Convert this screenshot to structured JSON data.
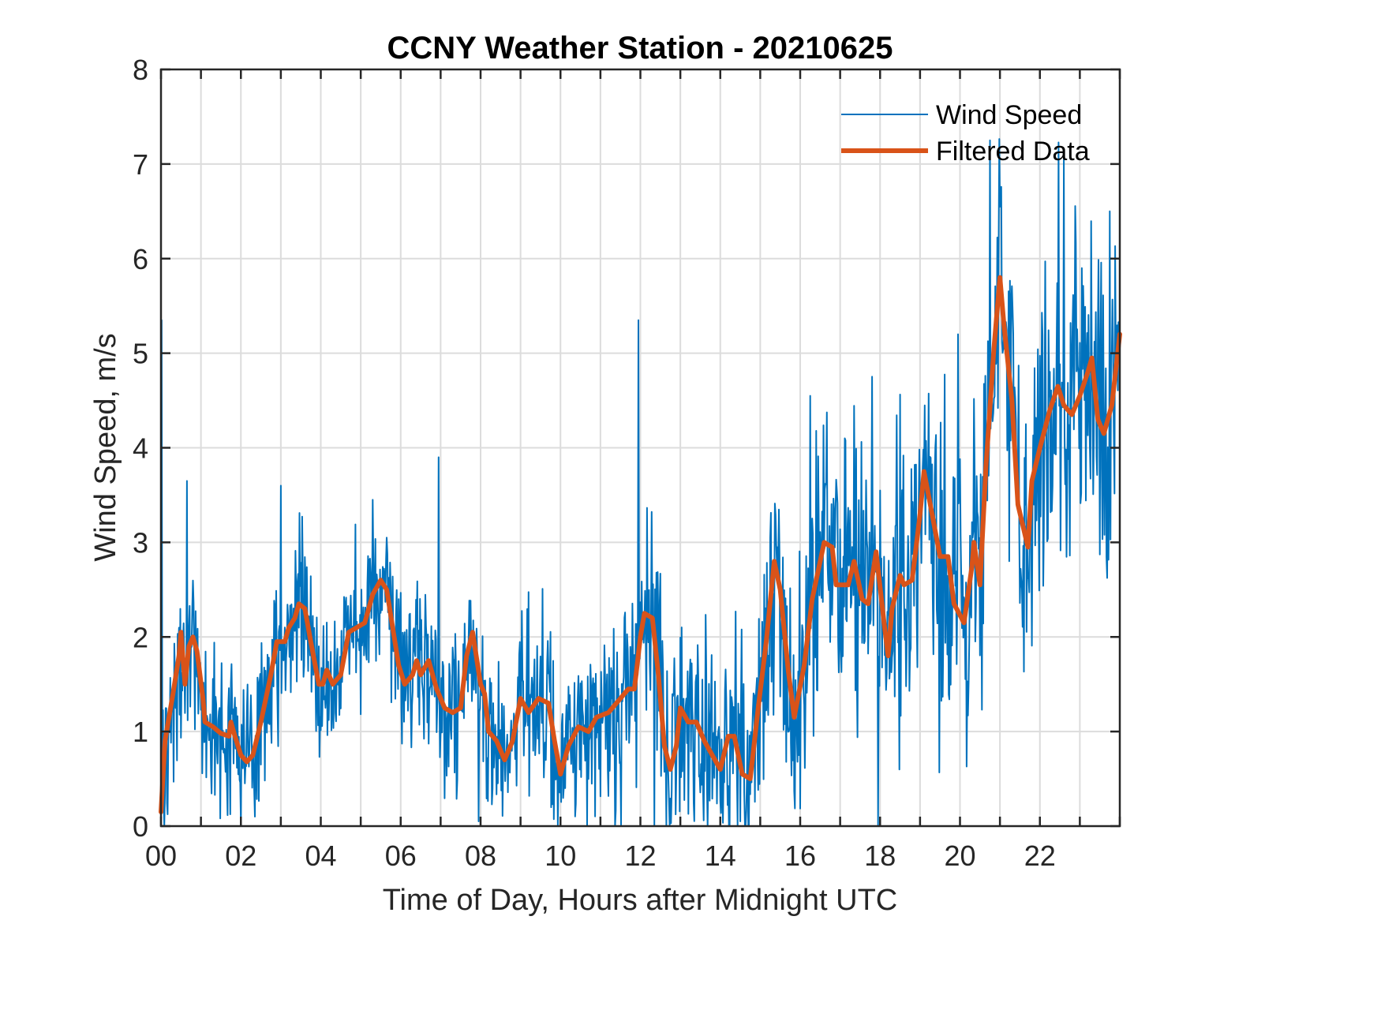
{
  "chart_data": {
    "type": "line",
    "title": "CCNY Weather Station - 20210625",
    "xlabel": "Time of Day, Hours after Midnight UTC",
    "ylabel": "Wind Speed, m/s",
    "xlim": [
      0,
      24
    ],
    "ylim": [
      0,
      8
    ],
    "grid": true,
    "x_grid_step_hours": 1,
    "xticks": [
      0,
      2,
      4,
      6,
      8,
      10,
      12,
      14,
      16,
      18,
      20,
      22
    ],
    "xtick_labels": [
      "00",
      "02",
      "04",
      "06",
      "08",
      "10",
      "12",
      "14",
      "16",
      "18",
      "20",
      "22"
    ],
    "yticks": [
      0,
      1,
      2,
      3,
      4,
      5,
      6,
      7,
      8
    ],
    "ytick_labels": [
      "0",
      "1",
      "2",
      "3",
      "4",
      "5",
      "6",
      "7",
      "8"
    ],
    "legend": {
      "placement": "top-right",
      "entries": [
        "Wind Speed",
        "Filtered Data"
      ]
    },
    "series": [
      {
        "name": "Wind Speed",
        "color": "#0072BD",
        "style": "thin-noisy",
        "noise_amplitude_by_hour": [
          [
            0,
            1.0
          ],
          [
            2,
            0.9
          ],
          [
            8,
            0.95
          ],
          [
            15,
            1.4
          ],
          [
            20,
            1.8
          ],
          [
            24,
            1.9
          ]
        ],
        "notable_peaks": [
          {
            "x": 0.02,
            "y": 5.35
          },
          {
            "x": 0.65,
            "y": 3.65
          },
          {
            "x": 3.0,
            "y": 3.6
          },
          {
            "x": 5.3,
            "y": 3.45
          },
          {
            "x": 6.95,
            "y": 3.9
          },
          {
            "x": 11.95,
            "y": 5.35
          },
          {
            "x": 16.25,
            "y": 4.55
          },
          {
            "x": 17.95,
            "y": 5.3
          },
          {
            "x": 19.95,
            "y": 5.2
          },
          {
            "x": 20.75,
            "y": 7.25
          },
          {
            "x": 22.6,
            "y": 7.05
          },
          {
            "x": 23.75,
            "y": 6.5
          }
        ],
        "notable_troughs": [
          {
            "x": 2.35,
            "y": 0.1
          },
          {
            "x": 7.95,
            "y": 0.05
          },
          {
            "x": 12.35,
            "y": 0.0
          },
          {
            "x": 17.95,
            "y": 0.0
          },
          {
            "x": 14.5,
            "y": 0.05
          }
        ]
      },
      {
        "name": "Filtered Data",
        "color": "#D95319",
        "style": "thick",
        "x": [
          0.0,
          0.1,
          0.3,
          0.45,
          0.5,
          0.6,
          0.7,
          0.8,
          0.9,
          1.05,
          1.1,
          1.3,
          1.5,
          1.7,
          1.75,
          1.85,
          2.0,
          2.15,
          2.3,
          2.5,
          2.75,
          2.9,
          3.1,
          3.2,
          3.35,
          3.45,
          3.6,
          3.75,
          3.95,
          4.05,
          4.15,
          4.3,
          4.5,
          4.7,
          4.9,
          5.1,
          5.3,
          5.5,
          5.65,
          5.8,
          5.95,
          6.1,
          6.3,
          6.4,
          6.5,
          6.7,
          6.9,
          7.1,
          7.3,
          7.5,
          7.65,
          7.8,
          8.0,
          8.1,
          8.2,
          8.4,
          8.6,
          8.8,
          9.0,
          9.2,
          9.45,
          9.7,
          9.85,
          10.0,
          10.2,
          10.45,
          10.7,
          10.9,
          11.2,
          11.5,
          11.7,
          11.85,
          12.0,
          12.1,
          12.3,
          12.45,
          12.6,
          12.75,
          12.9,
          13.0,
          13.2,
          13.4,
          13.6,
          13.8,
          14.0,
          14.2,
          14.35,
          14.55,
          14.75,
          14.95,
          15.15,
          15.35,
          15.5,
          15.7,
          15.85,
          16.1,
          16.3,
          16.6,
          16.8,
          16.9,
          17.2,
          17.35,
          17.55,
          17.7,
          17.9,
          18.1,
          18.2,
          18.3,
          18.5,
          18.6,
          18.8,
          19.0,
          19.1,
          19.3,
          19.5,
          19.7,
          19.85,
          20.1,
          20.3,
          20.35,
          20.5,
          20.65,
          20.85,
          21.0,
          21.1,
          21.3,
          21.45,
          21.7,
          21.8,
          22.0,
          22.25,
          22.45,
          22.6,
          22.8,
          23.0,
          23.2,
          23.3,
          23.45,
          23.6,
          23.8,
          24.0
        ],
        "y": [
          0.15,
          0.9,
          1.4,
          1.8,
          2.05,
          1.5,
          1.9,
          2.0,
          1.85,
          1.35,
          1.1,
          1.05,
          0.98,
          0.95,
          1.1,
          0.95,
          0.75,
          0.68,
          0.75,
          1.1,
          1.6,
          1.95,
          1.95,
          2.1,
          2.2,
          2.35,
          2.3,
          1.95,
          1.5,
          1.5,
          1.65,
          1.5,
          1.6,
          2.05,
          2.1,
          2.15,
          2.45,
          2.6,
          2.5,
          2.1,
          1.7,
          1.5,
          1.6,
          1.75,
          1.6,
          1.75,
          1.45,
          1.25,
          1.2,
          1.25,
          1.8,
          2.05,
          1.5,
          1.4,
          1.0,
          0.9,
          0.7,
          0.9,
          1.35,
          1.2,
          1.35,
          1.3,
          0.9,
          0.55,
          0.85,
          1.05,
          1.0,
          1.15,
          1.2,
          1.35,
          1.45,
          1.45,
          2.0,
          2.25,
          2.2,
          1.6,
          0.85,
          0.6,
          0.85,
          1.25,
          1.1,
          1.1,
          0.9,
          0.75,
          0.6,
          0.95,
          0.95,
          0.55,
          0.5,
          1.25,
          1.95,
          2.8,
          2.5,
          1.65,
          1.15,
          1.7,
          2.4,
          3.0,
          2.95,
          2.55,
          2.55,
          2.8,
          2.4,
          2.35,
          2.9,
          2.15,
          1.8,
          2.3,
          2.65,
          2.55,
          2.6,
          3.3,
          3.75,
          3.3,
          2.85,
          2.85,
          2.35,
          2.15,
          2.75,
          3.0,
          2.55,
          3.8,
          5.05,
          5.8,
          5.3,
          4.5,
          3.4,
          2.95,
          3.65,
          4.0,
          4.4,
          4.65,
          4.45,
          4.35,
          4.55,
          4.8,
          4.95,
          4.3,
          4.15,
          4.45,
          5.2
        ]
      }
    ]
  }
}
